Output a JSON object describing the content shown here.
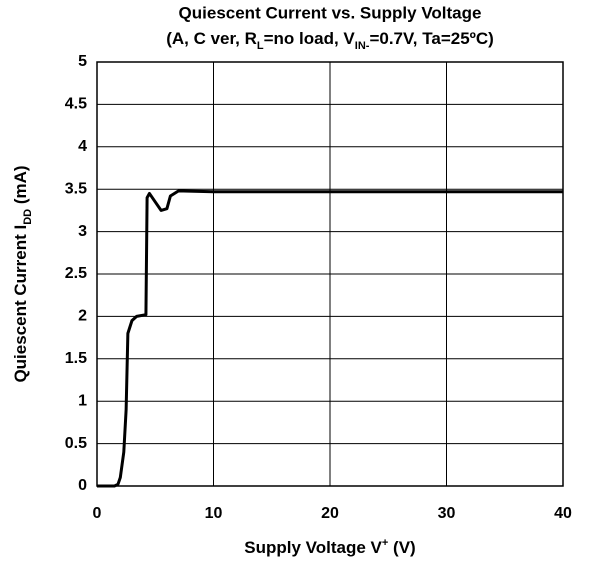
{
  "chart_data": {
    "type": "line",
    "title": "Quiescent Current vs. Supply Voltage",
    "subtitle": [
      "(A, C ver, R",
      "L",
      "=no load, V",
      "IN-",
      "=0.7V, Ta=25ºC)"
    ],
    "xlabel": [
      "Supply Voltage  V",
      "+",
      "  (V)"
    ],
    "ylabel": [
      "Quiescent Current  I",
      "DD",
      "  (mA)"
    ],
    "x": [
      0,
      1.5,
      1.8,
      2.0,
      2.3,
      2.5,
      2.65,
      3.0,
      3.4,
      4.2,
      4.3,
      4.5,
      5.0,
      5.5,
      6.0,
      6.3,
      7.0,
      10,
      40
    ],
    "series": [
      {
        "color": "#000000",
        "values": [
          0,
          0,
          0.02,
          0.1,
          0.4,
          0.9,
          1.8,
          1.95,
          2.0,
          2.02,
          3.4,
          3.45,
          3.35,
          3.25,
          3.27,
          3.42,
          3.48,
          3.47,
          3.47
        ]
      }
    ],
    "xlim": [
      0,
      40
    ],
    "xticks": [
      0,
      10,
      20,
      30,
      40
    ],
    "ylim": [
      0,
      5
    ],
    "yticks": [
      0,
      0.5,
      1,
      1.5,
      2,
      2.5,
      3,
      3.5,
      4,
      4.5,
      5
    ],
    "grid": true
  }
}
